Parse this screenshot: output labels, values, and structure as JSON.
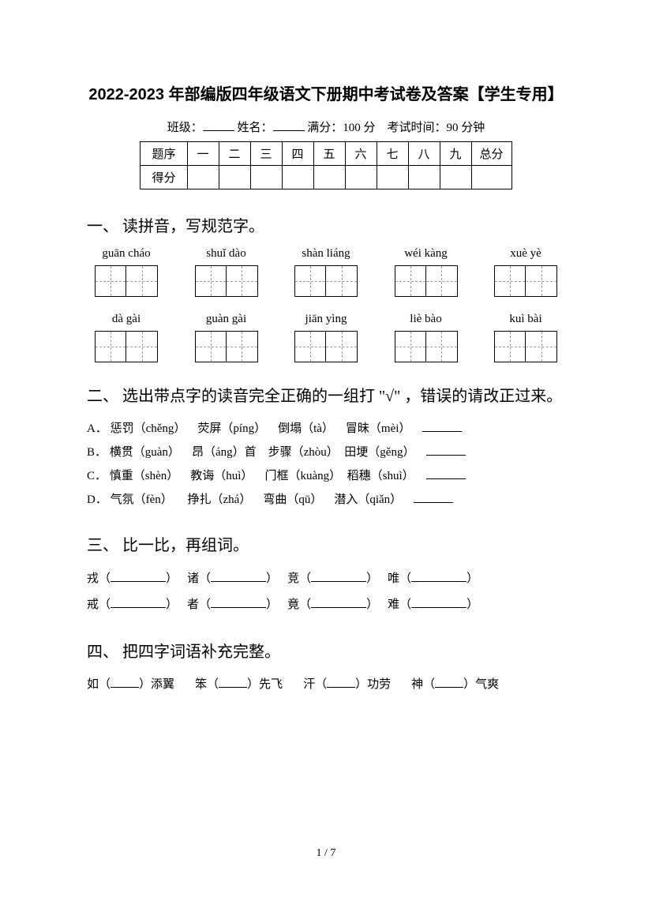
{
  "title": "2022-2023 年部编版四年级语文下册期中考试卷及答案【学生专用】",
  "meta": {
    "class_label": "班级：",
    "name_label": "姓名：",
    "full_label": "满分：100 分",
    "time_label": "考试时间：90 分钟"
  },
  "score_table": {
    "row1": [
      "题序",
      "一",
      "二",
      "三",
      "四",
      "五",
      "六",
      "七",
      "八",
      "九",
      "总分"
    ],
    "row2_label": "得分"
  },
  "section1": {
    "title": "一、 读拼音，写规范字。",
    "pinyin_row1": [
      "guān cháo",
      "shuǐ dào",
      "shàn liáng",
      "wéi kàng",
      "xuè yè"
    ],
    "pinyin_row2": [
      "dà gài",
      "guàn gài",
      "jiān yìng",
      "liè bào",
      "kuì bài"
    ]
  },
  "section2": {
    "title": "二、 选出带点字的读音完全正确的一组打 \"√\" ，错误的请改正过来。",
    "items": [
      {
        "opt": "A．",
        "parts": [
          "惩罚（chěng）",
          "荧屏（píng）",
          "倒塌（tà）",
          "冒昧（mèi）"
        ]
      },
      {
        "opt": "B．",
        "parts": [
          "横贯（guàn）",
          "昂（áng）首",
          "步骤（zhòu）",
          "田埂（gěng）"
        ]
      },
      {
        "opt": "C．",
        "parts": [
          "慎重（shèn）",
          "教诲（huì）",
          "门框（kuàng）",
          "稻穗（shuì）"
        ]
      },
      {
        "opt": "D．",
        "parts": [
          "气氛（fèn）",
          "挣扎（zhá）",
          "弯曲（qū）",
          "潜入（qiǎn）"
        ]
      }
    ]
  },
  "section3": {
    "title": "三、 比一比，再组词。",
    "row1": [
      "戎（",
      "）",
      "诸（",
      "）",
      "竞（",
      "）",
      "唯（",
      "）"
    ],
    "row2": [
      "戒（",
      "）",
      "者（",
      "）",
      "竟（",
      "）",
      "难（",
      "）"
    ]
  },
  "section4": {
    "title": "四、 把四字词语补充完整。",
    "items": [
      "如（",
      "）添翼",
      "笨（",
      "）先飞",
      "汗（",
      "）功劳",
      "神（",
      "）气爽"
    ]
  },
  "page_num": "1 / 7"
}
